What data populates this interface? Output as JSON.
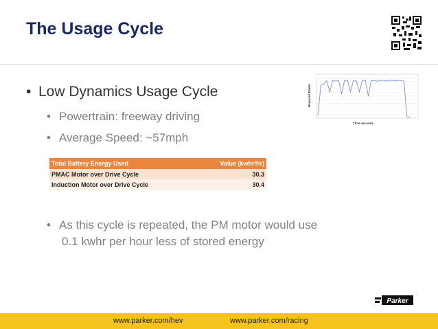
{
  "slide": {
    "title": "The Usage Cycle",
    "bullet1": "Low Dynamics Usage Cycle",
    "bullet_char": "•",
    "sub_bullets": [
      "Powertrain: freeway driving",
      "Average Speed: ~57mph"
    ],
    "bullet3_line1": "As this cycle is repeated, the PM motor would use",
    "bullet3_line2": "0.1 kwhr per hour less of stored energy"
  },
  "table": {
    "header": [
      "Total Battery Energy Used",
      "Value (kwhr/hr)"
    ],
    "rows": [
      [
        "PMAC Motor over Drive Cycle",
        "30.3"
      ],
      [
        "Induction Motor over Drive Cycle",
        "30.4"
      ]
    ]
  },
  "footer": {
    "link1": "www.parker.com/hev",
    "link2": "www.parker.com/racing"
  },
  "logo": {
    "text": "Parker"
  },
  "colors": {
    "title": "#1b2a5c",
    "footer_bar": "#f6c21d",
    "table_header": "#e9853d"
  },
  "chart_data": {
    "type": "line",
    "xlabel": "Time seconds",
    "ylabel": "Required Power",
    "grid": true,
    "series": [
      {
        "values": [
          0.05,
          0.75,
          0.78,
          0.85,
          0.6,
          0.86,
          0.84,
          0.86,
          0.55,
          0.86,
          0.86,
          0.6,
          0.86,
          0.84,
          0.6,
          0.86,
          0.86,
          0.5,
          0.86,
          0.85,
          0.84,
          0.86,
          0.86,
          0.84,
          0.86,
          0.86,
          0.85,
          0.86,
          0.86,
          0.84,
          0.03,
          0.02
        ]
      }
    ]
  }
}
